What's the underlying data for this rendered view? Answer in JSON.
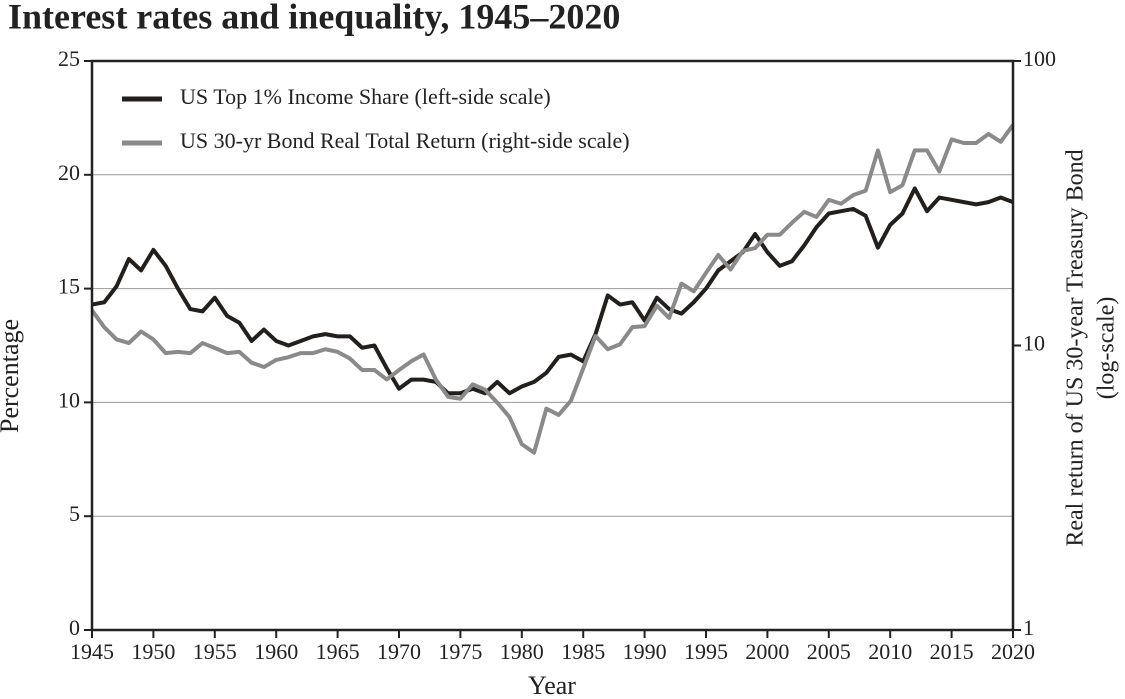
{
  "chart_data": {
    "type": "line",
    "title": "Interest rates and inequality, 1945–2020",
    "x_label": "Year",
    "y_label": "Percentage",
    "y2_label": [
      "Real return of US 30-year Treasury Bond",
      "(log-scale)"
    ],
    "x": [
      1945,
      1946,
      1947,
      1948,
      1949,
      1950,
      1951,
      1952,
      1953,
      1954,
      1955,
      1956,
      1957,
      1958,
      1959,
      1960,
      1961,
      1962,
      1963,
      1964,
      1965,
      1966,
      1967,
      1968,
      1969,
      1970,
      1971,
      1972,
      1973,
      1974,
      1975,
      1976,
      1977,
      1978,
      1979,
      1980,
      1981,
      1982,
      1983,
      1984,
      1985,
      1986,
      1987,
      1988,
      1989,
      1990,
      1991,
      1992,
      1993,
      1994,
      1995,
      1996,
      1997,
      1998,
      1999,
      2000,
      2001,
      2002,
      2003,
      2004,
      2005,
      2006,
      2007,
      2008,
      2009,
      2010,
      2011,
      2012,
      2013,
      2014,
      2015,
      2016,
      2017,
      2018,
      2019,
      2020
    ],
    "xlim": [
      1945,
      2020
    ],
    "xticks": [
      1945,
      1950,
      1955,
      1960,
      1965,
      1970,
      1975,
      1980,
      1985,
      1990,
      1995,
      2000,
      2005,
      2010,
      2015,
      2020
    ],
    "ylim": [
      0,
      25
    ],
    "yticks": [
      0,
      5,
      10,
      15,
      20,
      25
    ],
    "y2lim": [
      1,
      100
    ],
    "y2ticks": [
      1,
      10,
      100
    ],
    "y2_log": true,
    "grid": true,
    "legend": "upper left",
    "series": [
      {
        "name": "US Top 1% Income Share (left-side scale)",
        "color": "#231f1c",
        "values": [
          14.3,
          14.4,
          15.1,
          16.3,
          15.8,
          16.7,
          16.0,
          15.0,
          14.1,
          14.0,
          14.6,
          13.8,
          13.5,
          12.7,
          13.2,
          12.7,
          12.5,
          12.7,
          12.9,
          13.0,
          12.9,
          12.9,
          12.4,
          12.5,
          11.5,
          10.6,
          11.0,
          11.0,
          10.9,
          10.4,
          10.4,
          10.6,
          10.4,
          10.9,
          10.4,
          10.7,
          10.9,
          11.3,
          12.0,
          12.1,
          11.8,
          13.0,
          14.7,
          14.3,
          14.4,
          13.6,
          14.6,
          14.1,
          13.9,
          14.4,
          15.0,
          15.8,
          16.2,
          16.6,
          17.4,
          16.6,
          16.0,
          16.2,
          16.9,
          17.7,
          18.3,
          18.4,
          18.5,
          18.2,
          16.8,
          17.8,
          18.3,
          19.4,
          18.4,
          19.0,
          18.9,
          18.8,
          18.7,
          18.8,
          19.0,
          18.8
        ]
      },
      {
        "name": "US 30-yr Bond Real Total Return (right-side scale)",
        "color": "#8a8a8a",
        "axis": "y2",
        "values": [
          13.3,
          11.6,
          10.5,
          10.2,
          11.2,
          10.5,
          9.4,
          9.5,
          9.4,
          10.2,
          9.8,
          9.4,
          9.5,
          8.7,
          8.4,
          8.9,
          9.1,
          9.4,
          9.4,
          9.7,
          9.5,
          9.0,
          8.2,
          8.2,
          7.6,
          8.2,
          8.8,
          9.3,
          7.6,
          6.6,
          6.5,
          7.3,
          7.0,
          6.3,
          5.6,
          4.5,
          4.2,
          6.0,
          5.7,
          6.4,
          8.3,
          10.8,
          9.7,
          10.1,
          11.6,
          11.7,
          13.8,
          12.5,
          16.5,
          15.5,
          18.0,
          20.8,
          18.5,
          21.5,
          22.0,
          24.5,
          24.5,
          27.0,
          29.5,
          28.3,
          32.5,
          31.5,
          33.8,
          35.0,
          48.5,
          34.6,
          36.6,
          48.5,
          48.5,
          40.9,
          53.0,
          51.5,
          51.5,
          55.4,
          52.0,
          59.6
        ]
      }
    ]
  }
}
